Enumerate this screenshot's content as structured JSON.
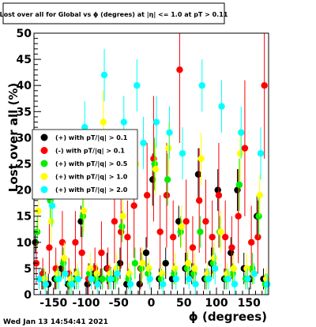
{
  "chart_data": {
    "type": "scatter",
    "title": "Lost over all for Global vs ϕ (degrees) at |η| <= 1.0 at pT > 0.11",
    "xlabel": "ϕ (degrees)",
    "ylabel": "Lost over all (%)",
    "xlim": [
      -180,
      180
    ],
    "ylim": [
      0,
      50
    ],
    "xticks": [
      -150,
      -100,
      -50,
      0,
      50,
      100,
      150
    ],
    "yticks": [
      0,
      5,
      10,
      15,
      20,
      25,
      30,
      35,
      40,
      45,
      50
    ],
    "grid": false,
    "legend_position": "left-middle",
    "footer": "Wed Jan 13 14:54:41 2021",
    "series": [
      {
        "name": "(+) with pT/|q| > 0.1",
        "color": "#000000",
        "x": [
          -175,
          -165,
          -155,
          -145,
          -135,
          -125,
          -115,
          -105,
          -95,
          -85,
          -75,
          -65,
          -55,
          -45,
          -35,
          -25,
          -15,
          -5,
          5,
          15,
          25,
          35,
          45,
          55,
          65,
          75,
          85,
          95,
          105,
          115,
          125,
          135,
          145,
          155,
          165,
          175
        ],
        "y": [
          10,
          3,
          2,
          3,
          5,
          2,
          3,
          14,
          2,
          4,
          3,
          5,
          3,
          6,
          2,
          24,
          2,
          8,
          22,
          3,
          6,
          3,
          14,
          5,
          4,
          23,
          3,
          6,
          20,
          3,
          8,
          20,
          5,
          3,
          15,
          3
        ],
        "err": [
          2,
          2,
          2,
          2,
          2,
          2,
          2,
          3,
          2,
          2,
          2,
          3,
          2,
          3,
          2,
          5,
          2,
          3,
          5,
          2,
          3,
          2,
          3,
          3,
          2,
          5,
          2,
          3,
          4,
          2,
          3,
          4,
          3,
          2,
          4,
          2
        ]
      },
      {
        "name": "(-) with pT/|q| > 0.1",
        "color": "#ff0000",
        "x": [
          -175,
          -165,
          -155,
          -145,
          -135,
          -125,
          -115,
          -105,
          -95,
          -85,
          -75,
          -65,
          -55,
          -45,
          -35,
          -25,
          -15,
          -5,
          5,
          15,
          25,
          35,
          45,
          55,
          65,
          75,
          85,
          95,
          105,
          115,
          125,
          135,
          145,
          155,
          165,
          175
        ],
        "y": [
          6,
          4,
          9,
          5,
          10,
          4,
          10,
          8,
          3,
          5,
          8,
          5,
          14,
          12,
          11,
          17,
          5,
          19,
          26,
          12,
          19,
          11,
          43,
          14,
          9,
          18,
          14,
          11,
          19,
          11,
          9,
          15,
          28,
          10,
          11,
          40
        ],
        "err": [
          4,
          3,
          5,
          4,
          6,
          3,
          6,
          5,
          3,
          4,
          6,
          4,
          8,
          7,
          7,
          10,
          4,
          10,
          12,
          7,
          10,
          7,
          14,
          8,
          6,
          10,
          8,
          7,
          10,
          7,
          6,
          9,
          13,
          7,
          7,
          14
        ]
      },
      {
        "name": "(+) with pT/|q| > 0.5",
        "color": "#00ee00",
        "x": [
          -175,
          -165,
          -155,
          -145,
          -135,
          -125,
          -115,
          -105,
          -95,
          -85,
          -75,
          -65,
          -55,
          -45,
          -35,
          -25,
          -15,
          -5,
          5,
          15,
          25,
          35,
          45,
          55,
          65,
          75,
          85,
          95,
          105,
          115,
          125,
          135,
          145,
          155,
          165,
          175
        ],
        "y": [
          12,
          3,
          18,
          3,
          6,
          2,
          3,
          15,
          4,
          3,
          3,
          3,
          3,
          13,
          3,
          6,
          5,
          4,
          25,
          3,
          22,
          4,
          12,
          5,
          4,
          12,
          3,
          6,
          12,
          3,
          4,
          21,
          3,
          5,
          15,
          2
        ],
        "err": [
          3,
          2,
          4,
          2,
          3,
          2,
          2,
          4,
          2,
          2,
          2,
          2,
          2,
          3,
          2,
          3,
          3,
          2,
          5,
          2,
          5,
          2,
          3,
          3,
          2,
          3,
          2,
          3,
          3,
          2,
          2,
          5,
          2,
          3,
          4,
          2
        ]
      },
      {
        "name": "(+) with pT/|q| > 1.0",
        "color": "#ffff00",
        "x": [
          -175,
          -165,
          -155,
          -145,
          -135,
          -125,
          -115,
          -105,
          -95,
          -85,
          -75,
          -65,
          -55,
          -45,
          -35,
          -25,
          -15,
          -5,
          5,
          15,
          25,
          35,
          45,
          55,
          65,
          75,
          85,
          95,
          105,
          115,
          125,
          135,
          145,
          155,
          165,
          175
        ],
        "y": [
          16,
          3,
          14,
          4,
          7,
          3,
          4,
          16,
          5,
          4,
          33,
          4,
          5,
          15,
          4,
          25,
          6,
          5,
          24,
          4,
          28,
          5,
          13,
          6,
          5,
          26,
          4,
          7,
          12,
          4,
          5,
          27,
          5,
          4,
          19,
          3
        ],
        "err": [
          4,
          2,
          4,
          2,
          3,
          2,
          2,
          4,
          3,
          2,
          6,
          2,
          3,
          4,
          2,
          5,
          3,
          2,
          5,
          2,
          5,
          3,
          4,
          3,
          3,
          5,
          2,
          3,
          4,
          2,
          3,
          5,
          3,
          2,
          4,
          2
        ]
      },
      {
        "name": "(+) with pT/|q| > 2.0",
        "color": "#00ffff",
        "x": [
          -175,
          -165,
          -155,
          -145,
          -135,
          -125,
          -115,
          -105,
          -95,
          -85,
          -75,
          -65,
          -55,
          -45,
          -35,
          -25,
          -15,
          -5,
          5,
          15,
          25,
          35,
          45,
          55,
          65,
          75,
          85,
          95,
          105,
          115,
          125,
          135,
          145,
          155,
          165,
          175
        ],
        "y": [
          3,
          2,
          17,
          3,
          4,
          2,
          3,
          32,
          3,
          2,
          42,
          3,
          4,
          33,
          2,
          40,
          29,
          3,
          33,
          2,
          31,
          3,
          27,
          3,
          2,
          40,
          3,
          5,
          36,
          3,
          2,
          31,
          3,
          4,
          27,
          2
        ],
        "err": [
          2,
          2,
          4,
          2,
          2,
          2,
          2,
          5,
          2,
          2,
          5,
          2,
          2,
          5,
          2,
          5,
          5,
          2,
          5,
          2,
          5,
          2,
          5,
          2,
          2,
          5,
          2,
          3,
          5,
          2,
          2,
          5,
          2,
          2,
          5,
          2
        ]
      }
    ]
  }
}
